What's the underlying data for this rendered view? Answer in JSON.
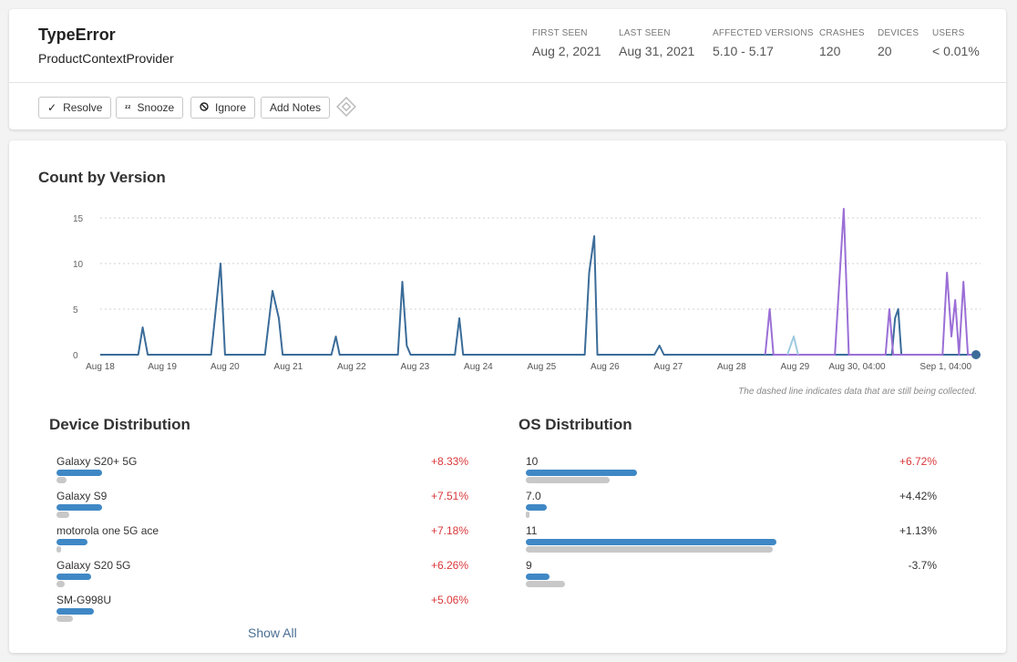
{
  "issue": {
    "title": "TypeError",
    "subtitle": "ProductContextProvider"
  },
  "stats": [
    {
      "label": "FIRST SEEN",
      "value": "Aug 2, 2021"
    },
    {
      "label": "LAST SEEN",
      "value": "Aug 31, 2021"
    },
    {
      "label": "AFFECTED VERSIONS",
      "value": "5.10 - 5.17"
    },
    {
      "label": "CRASHES",
      "value": "120"
    },
    {
      "label": "DEVICES",
      "value": "20"
    },
    {
      "label": "USERS",
      "value": "< 0.01%"
    }
  ],
  "actions": {
    "resolve": "Resolve",
    "snooze": "Snooze",
    "ignore": "Ignore",
    "add_notes": "Add Notes"
  },
  "icons": {
    "resolve": "check-icon",
    "snooze": "snooze-icon",
    "ignore": "block-icon",
    "extra": "diamond-icon"
  },
  "count_by_version": {
    "title": "Count by Version",
    "note": "The dashed line indicates data that are still being collected."
  },
  "chart_data": {
    "type": "line",
    "x_labels": [
      "Aug 18",
      "Aug 19",
      "Aug 20",
      "Aug 21",
      "Aug 22",
      "Aug 23",
      "Aug 24",
      "Aug 25",
      "Aug 26",
      "Aug 27",
      "Aug 28",
      "Aug 29",
      "Aug 30, 04:00",
      "Sep 1, 04:00"
    ],
    "yticks": [
      0,
      5,
      10,
      15
    ],
    "ylim": [
      0,
      16
    ],
    "series": [
      {
        "color": "#3b6c99",
        "points": [
          [
            0,
            0
          ],
          [
            0.6,
            0
          ],
          [
            0.67,
            3
          ],
          [
            0.75,
            0
          ],
          [
            1.75,
            0
          ],
          [
            1.9,
            10
          ],
          [
            1.97,
            0
          ],
          [
            2.6,
            0
          ],
          [
            2.72,
            7
          ],
          [
            2.82,
            4
          ],
          [
            2.88,
            0
          ],
          [
            3.65,
            0
          ],
          [
            3.72,
            2
          ],
          [
            3.78,
            0
          ],
          [
            4.7,
            0
          ],
          [
            4.77,
            8
          ],
          [
            4.84,
            1
          ],
          [
            4.9,
            0
          ],
          [
            5.6,
            0
          ],
          [
            5.67,
            4
          ],
          [
            5.73,
            0
          ],
          [
            7.65,
            0
          ],
          [
            7.72,
            9
          ],
          [
            7.8,
            13
          ],
          [
            7.85,
            0
          ],
          [
            8.75,
            0
          ],
          [
            8.83,
            1
          ],
          [
            8.9,
            0
          ],
          [
            12.5,
            0
          ],
          [
            12.55,
            4
          ],
          [
            12.6,
            5
          ],
          [
            12.65,
            0
          ],
          [
            13.9,
            0
          ]
        ]
      },
      {
        "color": "#9b6fd6",
        "points": [
          [
            10.5,
            0
          ],
          [
            10.57,
            5
          ],
          [
            10.63,
            0
          ],
          [
            11.6,
            0
          ],
          [
            11.74,
            16
          ],
          [
            11.82,
            0
          ],
          [
            12.4,
            0
          ],
          [
            12.46,
            5
          ],
          [
            12.52,
            0
          ],
          [
            13.3,
            0
          ],
          [
            13.37,
            9
          ],
          [
            13.44,
            2
          ],
          [
            13.5,
            6
          ],
          [
            13.56,
            0
          ],
          [
            13.63,
            8
          ],
          [
            13.7,
            0
          ],
          [
            13.9,
            0
          ]
        ]
      },
      {
        "color": "#9ecae1",
        "points": [
          [
            10.85,
            0
          ],
          [
            10.95,
            2
          ],
          [
            11.02,
            0
          ]
        ]
      }
    ]
  },
  "device_distribution": {
    "title": "Device Distribution",
    "items": [
      {
        "name": "Galaxy S20+ 5G",
        "pct": "+8.33%",
        "tone": "pos",
        "cur": 0.11,
        "prev": 0.025
      },
      {
        "name": "Galaxy S9",
        "pct": "+7.51%",
        "tone": "pos",
        "cur": 0.11,
        "prev": 0.03
      },
      {
        "name": "motorola one 5G ace",
        "pct": "+7.18%",
        "tone": "pos",
        "cur": 0.075,
        "prev": 0.01
      },
      {
        "name": "Galaxy S20 5G",
        "pct": "+6.26%",
        "tone": "pos",
        "cur": 0.085,
        "prev": 0.02
      },
      {
        "name": "SM-G998U",
        "pct": "+5.06%",
        "tone": "pos",
        "cur": 0.09,
        "prev": 0.04
      }
    ],
    "show_all": "Show All"
  },
  "os_distribution": {
    "title": "OS Distribution",
    "items": [
      {
        "name": "10",
        "pct": "+6.72%",
        "tone": "pos",
        "cur": 0.27,
        "prev": 0.205
      },
      {
        "name": "7.0",
        "pct": "+4.42%",
        "tone": "neu",
        "cur": 0.05,
        "prev": 0.008
      },
      {
        "name": "11",
        "pct": "+1.13%",
        "tone": "neu",
        "cur": 0.61,
        "prev": 0.6
      },
      {
        "name": "9",
        "pct": "-3.7%",
        "tone": "neu",
        "cur": 0.058,
        "prev": 0.095
      }
    ]
  }
}
